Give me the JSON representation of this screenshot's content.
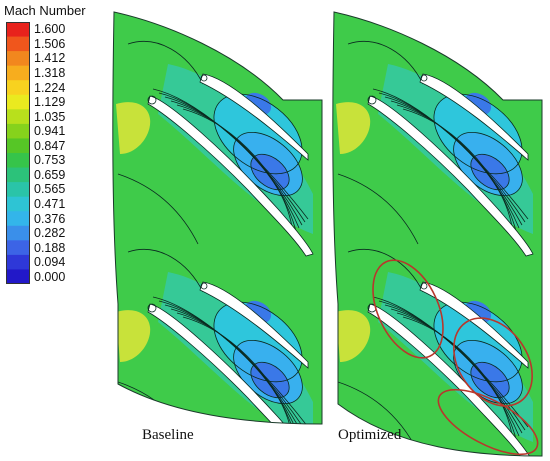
{
  "legend": {
    "title": "Mach Number",
    "levels": [
      "1.600",
      "1.506",
      "1.412",
      "1.318",
      "1.224",
      "1.129",
      "1.035",
      "0.941",
      "0.847",
      "0.753",
      "0.659",
      "0.565",
      "0.471",
      "0.376",
      "0.282",
      "0.188",
      "0.094",
      "0.000"
    ],
    "colors": [
      "#e8221c",
      "#f0561c",
      "#f2871e",
      "#f7ad1e",
      "#f8d21f",
      "#eaea1f",
      "#b8e01c",
      "#86d21c",
      "#56c626",
      "#36c44a",
      "#2cc27a",
      "#2ac4a8",
      "#2ec4d4",
      "#33b5ea",
      "#3a8fea",
      "#3c64e6",
      "#2e38d8",
      "#2218c8"
    ]
  },
  "panels": [
    {
      "name": "baseline",
      "caption": "Baseline"
    },
    {
      "name": "optimized",
      "caption": "Optimized"
    }
  ],
  "highlight_color": "#b8372c",
  "field_colors": {
    "green": "#3fcb4a",
    "teal": "#35c9a0",
    "cyan": "#2ec6dc",
    "lightblue": "#38b0ee",
    "blue": "#3a78e8",
    "deepblue": "#2246d8",
    "yellow": "#c8e23a",
    "blade": "#ffffff",
    "line": "#0a2a20"
  }
}
